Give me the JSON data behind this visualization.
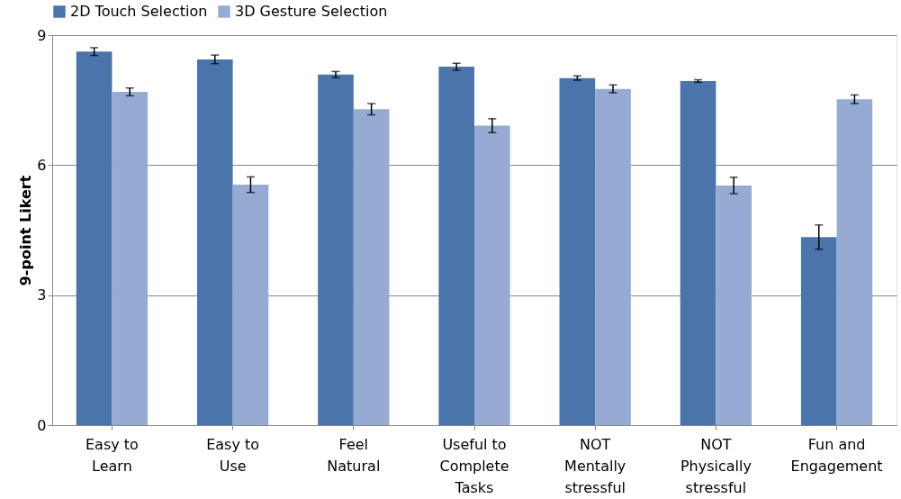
{
  "chart_data": {
    "type": "bar",
    "ylabel": "9-point Likert",
    "categories": [
      "Easy to Learn",
      "Easy to Use",
      "Feel Natural",
      "Useful to Complete Tasks",
      "NOT Mentally stressful",
      "NOT Physically stressful",
      "Fun and Engagement"
    ],
    "series": [
      {
        "name": "2D Touch Selection",
        "color": "#4a74aa",
        "values": [
          8.62,
          8.44,
          8.09,
          8.27,
          8.01,
          7.94,
          4.34
        ],
        "errors": [
          0.09,
          0.1,
          0.07,
          0.08,
          0.05,
          0.03,
          0.28
        ]
      },
      {
        "name": "3D Gesture Selection",
        "color": "#95abd3",
        "values": [
          7.69,
          5.55,
          7.29,
          6.91,
          7.76,
          5.53,
          7.52
        ],
        "errors": [
          0.09,
          0.18,
          0.13,
          0.16,
          0.09,
          0.19,
          0.1
        ]
      }
    ],
    "ylim": [
      0,
      9
    ],
    "yticks": [
      0,
      3,
      6,
      9
    ],
    "grid": "y",
    "legend": "top"
  }
}
